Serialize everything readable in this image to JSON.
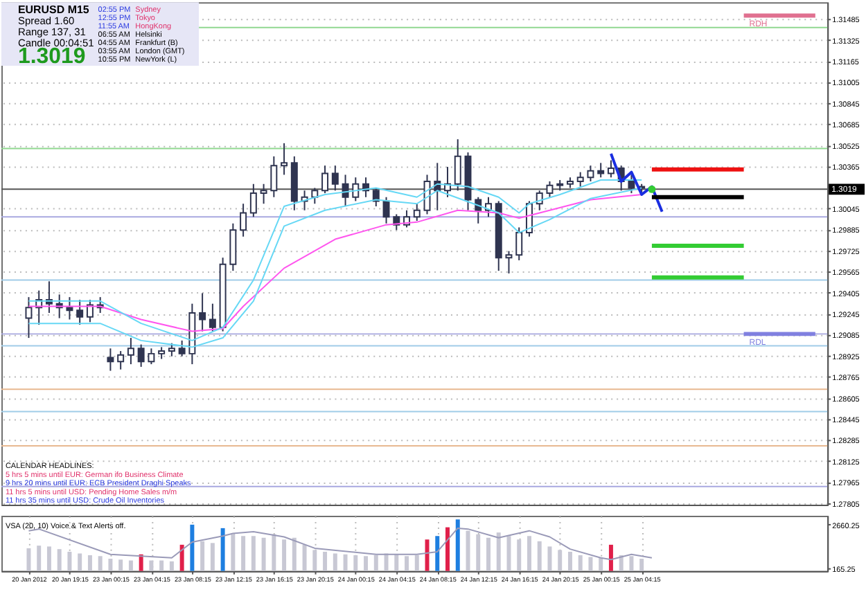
{
  "chart_data": [
    {
      "type": "candlestick",
      "color": "#2f3450",
      "categories": [
        null,
        null,
        null,
        null,
        null,
        null,
        null,
        null,
        null,
        null,
        null,
        null,
        null,
        null,
        null,
        null,
        null,
        null,
        null,
        null,
        null,
        null,
        null,
        null,
        null,
        null,
        null,
        null,
        null,
        null,
        null,
        null,
        null,
        null,
        null,
        null,
        null,
        null,
        null,
        null,
        null,
        null,
        null,
        null,
        null,
        null,
        null,
        null,
        null,
        null,
        null,
        null,
        null,
        null,
        null,
        null,
        null,
        null,
        null,
        null,
        null,
        null,
        null,
        null,
        null,
        null,
        null,
        null,
        null,
        null,
        null,
        null,
        null,
        null,
        null,
        null,
        null,
        null
      ],
      "ohlc": [
        [
          1.2921,
          1.2937,
          1.2906,
          1.2929
        ],
        [
          1.2929,
          1.2942,
          1.2916,
          1.2935
        ],
        [
          1.2935,
          1.2949,
          1.2925,
          1.2932
        ],
        [
          1.2932,
          1.2939,
          1.2921,
          1.2929
        ],
        [
          1.2929,
          1.2937,
          1.292,
          1.2927
        ],
        [
          1.2927,
          1.2935,
          1.2916,
          1.2922
        ],
        [
          1.2922,
          1.2935,
          1.2918,
          1.2931
        ],
        [
          1.2931,
          1.2937,
          1.2925,
          1.2929
        ],
        [
          1.2891,
          1.2898,
          1.2881,
          1.2888
        ],
        [
          1.2888,
          1.2896,
          1.2882,
          1.2893
        ],
        [
          1.2893,
          1.2906,
          1.2886,
          1.2898
        ],
        [
          1.2898,
          1.2901,
          1.2884,
          1.2888
        ],
        [
          1.2888,
          1.2898,
          1.2886,
          1.2894
        ],
        [
          1.2894,
          1.2899,
          1.289,
          1.2896
        ],
        [
          1.2896,
          1.2902,
          1.2892,
          1.2898
        ],
        [
          1.2898,
          1.2904,
          1.2892,
          1.2894
        ],
        [
          1.2894,
          1.2932,
          1.2886,
          1.2925
        ],
        [
          1.2925,
          1.294,
          1.2911,
          1.292
        ],
        [
          1.292,
          1.2932,
          1.2911,
          1.2914
        ],
        [
          1.2914,
          1.2967,
          1.2911,
          1.2962
        ],
        [
          1.2962,
          1.2993,
          1.2957,
          1.2988
        ],
        [
          1.2988,
          1.3008,
          1.2983,
          1.3001
        ],
        [
          1.3001,
          1.3023,
          1.2998,
          1.3016
        ],
        [
          1.3016,
          1.3023,
          1.3008,
          1.3018
        ],
        [
          1.3018,
          1.3044,
          1.3013,
          1.3037
        ],
        [
          1.3037,
          1.3054,
          1.303,
          1.3039
        ],
        [
          1.3039,
          1.3044,
          1.3003,
          1.301
        ],
        [
          1.301,
          1.3018,
          1.3003,
          1.3013
        ],
        [
          1.3013,
          1.302,
          1.3008,
          1.3018
        ],
        [
          1.3018,
          1.3037,
          1.3016,
          1.3031
        ],
        [
          1.3031,
          1.3037,
          1.3018,
          1.3023
        ],
        [
          1.3023,
          1.303,
          1.3006,
          1.3013
        ],
        [
          1.3013,
          1.3028,
          1.301,
          1.3023
        ],
        [
          1.3023,
          1.3028,
          1.3013,
          1.3018
        ],
        [
          1.3018,
          1.302,
          1.3006,
          1.301
        ],
        [
          1.301,
          1.3013,
          1.2993,
          1.2998
        ],
        [
          1.2998,
          1.3,
          1.2988,
          1.2992
        ],
        [
          1.2992,
          1.3003,
          1.299,
          1.2998
        ],
        [
          1.2998,
          1.3008,
          1.2995,
          1.3003
        ],
        [
          1.3003,
          1.303,
          1.3,
          1.3025
        ],
        [
          1.3025,
          1.3039,
          1.3003,
          1.3018
        ],
        [
          1.3018,
          1.3036,
          1.3013,
          1.3023
        ],
        [
          1.3023,
          1.3057,
          1.3018,
          1.3044
        ],
        [
          1.3044,
          1.3047,
          1.3003,
          1.3011
        ],
        [
          1.3011,
          1.3013,
          1.2993,
          1.3003
        ],
        [
          1.3003,
          1.3013,
          1.2998,
          1.3008
        ],
        [
          1.3008,
          1.301,
          1.2957,
          1.2967
        ],
        [
          1.2967,
          1.2972,
          1.2955,
          1.2969
        ],
        [
          1.2969,
          1.299,
          1.2965,
          1.2986
        ],
        [
          1.2986,
          1.301,
          1.2983,
          1.3008
        ],
        [
          1.3008,
          1.3018,
          1.3003,
          1.3016
        ],
        [
          1.3016,
          1.3025,
          1.3013,
          1.3022
        ],
        [
          1.3022,
          1.3026,
          1.3018,
          1.3023
        ],
        [
          1.3023,
          1.3028,
          1.302,
          1.3025
        ],
        [
          1.3025,
          1.3032,
          1.3021,
          1.3028
        ],
        [
          1.3028,
          1.3037,
          1.3025,
          1.3033
        ],
        [
          1.3033,
          1.3039,
          1.3028,
          1.3031
        ],
        [
          1.3031,
          1.3041,
          1.3028,
          1.3035
        ],
        [
          1.3035,
          1.3037,
          1.3018,
          1.3025
        ],
        [
          1.3025,
          1.303,
          1.3016,
          1.302
        ],
        [
          1.302,
          1.3023,
          1.3016,
          1.3021
        ],
        null,
        null,
        null,
        null,
        null,
        null,
        null,
        null,
        null,
        null,
        null,
        null,
        null,
        null,
        null,
        null,
        null
      ],
      "series": [
        {
          "type": "line",
          "color": "#ff55ee",
          "values": [
            1.293,
            null,
            null,
            null,
            null,
            null,
            null,
            1.293,
            null,
            null,
            null,
            1.292,
            null,
            null,
            null,
            null,
            1.2911,
            null,
            null,
            1.2913,
            null,
            1.293,
            null,
            null,
            null,
            1.2959,
            null,
            null,
            null,
            null,
            1.2981,
            null,
            null,
            null,
            null,
            1.2992,
            null,
            null,
            1.2994,
            null,
            null,
            null,
            1.3003,
            null,
            null,
            null,
            1.3001,
            null,
            1.2997,
            null,
            null,
            1.3003,
            null,
            null,
            null,
            1.3011,
            null,
            null,
            null,
            null,
            1.3015,
            null,
            null,
            null,
            null,
            null,
            null,
            null,
            null,
            null,
            null,
            null,
            null,
            null,
            null,
            null,
            null,
            null
          ]
        },
        {
          "type": "line",
          "color": "#66d8f5",
          "values": [
            1.2934,
            null,
            null,
            null,
            null,
            null,
            null,
            1.2934,
            null,
            null,
            null,
            1.2917,
            null,
            null,
            null,
            null,
            1.2904,
            null,
            null,
            1.2914,
            null,
            null,
            1.295,
            null,
            null,
            1.3006,
            null,
            null,
            null,
            1.3015,
            null,
            null,
            null,
            null,
            1.302,
            null,
            null,
            null,
            1.3013,
            null,
            1.3023,
            null,
            null,
            1.3021,
            null,
            null,
            1.3013,
            null,
            1.3001,
            1.3008,
            null,
            null,
            1.3015,
            null,
            null,
            null,
            1.3026,
            null,
            null,
            null,
            1.3026,
            null,
            null,
            null,
            null,
            null,
            null,
            null,
            null,
            null,
            null,
            null,
            null,
            null,
            null,
            null,
            null,
            null
          ]
        },
        {
          "type": "line",
          "color": "#66d8f5",
          "values": [
            1.2917,
            null,
            null,
            null,
            null,
            null,
            null,
            1.2917,
            null,
            null,
            null,
            1.2904,
            null,
            null,
            null,
            null,
            1.2899,
            null,
            null,
            1.2906,
            null,
            null,
            1.2934,
            null,
            null,
            1.2991,
            null,
            null,
            null,
            1.3003,
            null,
            null,
            null,
            null,
            1.3011,
            null,
            null,
            null,
            1.3008,
            null,
            1.3018,
            null,
            null,
            null,
            null,
            null,
            1.3001,
            null,
            1.2986,
            null,
            null,
            1.2996,
            null,
            null,
            null,
            1.3012,
            null,
            null,
            null,
            null,
            1.302,
            null,
            null,
            null,
            null,
            null,
            null,
            null,
            null,
            null,
            null,
            null,
            null,
            null,
            null,
            null,
            null,
            null
          ]
        },
        {
          "type": "line",
          "color": "#1a2ee0",
          "values": [
            null,
            null,
            null,
            null,
            null,
            null,
            null,
            null,
            null,
            null,
            null,
            null,
            null,
            null,
            null,
            null,
            null,
            null,
            null,
            null,
            null,
            null,
            null,
            null,
            null,
            null,
            null,
            null,
            null,
            null,
            null,
            null,
            null,
            null,
            null,
            null,
            null,
            null,
            null,
            null,
            null,
            null,
            null,
            null,
            null,
            null,
            null,
            null,
            null,
            null,
            null,
            null,
            null,
            null,
            null,
            null,
            null,
            1.3046,
            1.3025,
            1.3032,
            1.3015,
            1.3021,
            1.3002,
            null,
            null,
            null,
            null,
            null,
            null,
            null,
            null,
            null,
            null,
            null,
            null,
            null,
            null,
            null
          ]
        },
        {
          "type": "scatter",
          "color": "#33cc33",
          "values": [
            null,
            null,
            null,
            null,
            null,
            null,
            null,
            null,
            null,
            null,
            null,
            null,
            null,
            null,
            null,
            null,
            null,
            null,
            null,
            null,
            null,
            null,
            null,
            null,
            null,
            null,
            null,
            null,
            null,
            null,
            null,
            null,
            null,
            null,
            null,
            null,
            null,
            null,
            null,
            null,
            null,
            null,
            null,
            null,
            null,
            null,
            null,
            null,
            null,
            null,
            null,
            null,
            null,
            null,
            null,
            null,
            null,
            null,
            null,
            null,
            null,
            1.3019,
            null,
            null,
            null,
            null,
            null,
            null,
            null,
            null,
            null,
            null,
            null,
            null,
            null,
            null,
            null,
            null
          ]
        },
        {
          "type": "line",
          "color": "#ee1111",
          "values": [
            null,
            null,
            null,
            null,
            null,
            null,
            null,
            null,
            null,
            null,
            null,
            null,
            null,
            null,
            null,
            null,
            null,
            null,
            null,
            null,
            null,
            null,
            null,
            null,
            null,
            null,
            null,
            null,
            null,
            null,
            null,
            null,
            null,
            null,
            null,
            null,
            null,
            null,
            null,
            null,
            null,
            null,
            null,
            null,
            null,
            null,
            null,
            null,
            null,
            null,
            null,
            null,
            null,
            null,
            null,
            null,
            null,
            null,
            null,
            null,
            null,
            1.3034,
            null,
            null,
            null,
            null,
            null,
            null,
            null,
            null,
            1.3034,
            null,
            null,
            null,
            null,
            null,
            null,
            null
          ]
        },
        {
          "type": "line",
          "color": "#000000",
          "values": [
            null,
            null,
            null,
            null,
            null,
            null,
            null,
            null,
            null,
            null,
            null,
            null,
            null,
            null,
            null,
            null,
            null,
            null,
            null,
            null,
            null,
            null,
            null,
            null,
            null,
            null,
            null,
            null,
            null,
            null,
            null,
            null,
            null,
            null,
            null,
            null,
            null,
            null,
            null,
            null,
            null,
            null,
            null,
            null,
            null,
            null,
            null,
            null,
            null,
            null,
            null,
            null,
            null,
            null,
            null,
            null,
            null,
            null,
            null,
            null,
            null,
            1.3013,
            null,
            null,
            null,
            null,
            null,
            null,
            null,
            null,
            1.3013,
            null,
            null,
            null,
            null,
            null,
            null,
            null
          ]
        },
        {
          "type": "line",
          "color": "#33cc33",
          "values": [
            null,
            null,
            null,
            null,
            null,
            null,
            null,
            null,
            null,
            null,
            null,
            null,
            null,
            null,
            null,
            null,
            null,
            null,
            null,
            null,
            null,
            null,
            null,
            null,
            null,
            null,
            null,
            null,
            null,
            null,
            null,
            null,
            null,
            null,
            null,
            null,
            null,
            null,
            null,
            null,
            null,
            null,
            null,
            null,
            null,
            null,
            null,
            null,
            null,
            null,
            null,
            null,
            null,
            null,
            null,
            null,
            null,
            null,
            null,
            null,
            null,
            1.2976,
            null,
            null,
            null,
            null,
            null,
            null,
            null,
            null,
            1.2976,
            null,
            null,
            null,
            null,
            null,
            null,
            null
          ]
        },
        {
          "type": "line",
          "color": "#33cc33",
          "values": [
            null,
            null,
            null,
            null,
            null,
            null,
            null,
            null,
            null,
            null,
            null,
            null,
            null,
            null,
            null,
            null,
            null,
            null,
            null,
            null,
            null,
            null,
            null,
            null,
            null,
            null,
            null,
            null,
            null,
            null,
            null,
            null,
            null,
            null,
            null,
            null,
            null,
            null,
            null,
            null,
            null,
            null,
            null,
            null,
            null,
            null,
            null,
            null,
            null,
            null,
            null,
            null,
            null,
            null,
            null,
            null,
            null,
            null,
            null,
            null,
            null,
            1.2952,
            null,
            null,
            null,
            null,
            null,
            null,
            null,
            null,
            1.2952,
            null,
            null,
            null,
            null,
            null,
            null,
            null
          ]
        },
        {
          "type": "line",
          "name": "RDH",
          "color": "#e07090",
          "values": [
            null,
            null,
            null,
            null,
            null,
            null,
            null,
            null,
            null,
            null,
            null,
            null,
            null,
            null,
            null,
            null,
            null,
            null,
            null,
            null,
            null,
            null,
            null,
            null,
            null,
            null,
            null,
            null,
            null,
            null,
            null,
            null,
            null,
            null,
            null,
            null,
            null,
            null,
            null,
            null,
            null,
            null,
            null,
            null,
            null,
            null,
            null,
            null,
            null,
            null,
            null,
            null,
            null,
            null,
            null,
            null,
            null,
            null,
            null,
            null,
            null,
            null,
            null,
            null,
            null,
            null,
            null,
            null,
            null,
            null,
            1.3151,
            null,
            null,
            null,
            null,
            null,
            null,
            1.3151
          ]
        },
        {
          "type": "line",
          "name": "RDL",
          "color": "#8080e0",
          "values": [
            null,
            null,
            null,
            null,
            null,
            null,
            null,
            null,
            null,
            null,
            null,
            null,
            null,
            null,
            null,
            null,
            null,
            null,
            null,
            null,
            null,
            null,
            null,
            null,
            null,
            null,
            null,
            null,
            null,
            null,
            null,
            null,
            null,
            null,
            null,
            null,
            null,
            null,
            null,
            null,
            null,
            null,
            null,
            null,
            null,
            null,
            null,
            null,
            null,
            null,
            null,
            null,
            null,
            null,
            null,
            null,
            null,
            null,
            null,
            null,
            null,
            null,
            null,
            null,
            null,
            null,
            null,
            null,
            null,
            null,
            1.2909,
            null,
            null,
            null,
            null,
            null,
            null,
            1.2909
          ]
        }
      ],
      "ylim": [
        1.27792,
        1.31611
      ],
      "yticks": [
        1.27805,
        1.27965,
        1.28125,
        1.28285,
        1.28445,
        1.28605,
        1.28765,
        1.28925,
        1.29085,
        1.29245,
        1.29405,
        1.29565,
        1.29725,
        1.29885,
        1.30045,
        1.30365,
        1.30525,
        1.30685,
        1.30845,
        1.31005,
        1.31165,
        1.31325,
        1.31485
      ],
      "grid": "y",
      "tick_labels": "y",
      "ref_lines": [
        {
          "axis": "y",
          "value": 1.3019,
          "label": "1.3019",
          "color": "#555555"
        },
        {
          "axis": "y",
          "value": 1.3142,
          "color": "#90d890"
        },
        {
          "axis": "y",
          "value": 1.305,
          "color": "#90d890"
        },
        {
          "axis": "y",
          "value": 1.2998,
          "color": "#a8a8e0"
        },
        {
          "axis": "y",
          "value": 1.295,
          "color": "#a0cce8"
        },
        {
          "axis": "y",
          "value": 1.2909,
          "color": "#a8a8e0"
        },
        {
          "axis": "y",
          "value": 1.29,
          "color": "#a0cce8"
        },
        {
          "axis": "y",
          "value": 1.2867,
          "color": "#e8b890"
        },
        {
          "axis": "y",
          "value": 1.285,
          "color": "#a0cce8"
        },
        {
          "axis": "y",
          "value": 1.2824,
          "color": "#e8b890"
        },
        {
          "axis": "y",
          "value": 1.2793,
          "color": "#a8a8e0"
        }
      ],
      "annotations": [
        "EURUSD   M15",
        "Spread  1.60",
        "Range   137, 31",
        "Candle  00:04:51",
        "1.3019",
        "02:55 PM",
        "12:55 PM",
        "11:55 AM",
        "06:55 AM",
        "04:55 AM",
        "03:55 AM",
        "10:55 PM",
        "Sydney",
        "Tokyo",
        "HongKong",
        "Helsinki",
        "Frankfurt (B)",
        "London (GMT)",
        "NewYork (L)",
        "CALENDAR HEADLINES:",
        "5 hrs 5 mins until EUR: German ifo Business Climate",
        "9 hrs 20 mins until EUR: ECB President Draghi Speaks",
        "11 hrs 5 mins until USD: Pending Home Sales m/m",
        "11 hrs 35 mins until USD: Crude Oil Inventories"
      ]
    },
    {
      "type": "bar",
      "categories": [
        "20 Jan 2012",
        null,
        null,
        null,
        "20 Jan 19:15",
        null,
        null,
        null,
        "23 Jan 00:15",
        null,
        null,
        null,
        "23 Jan 04:15",
        null,
        null,
        null,
        "23 Jan 08:15",
        null,
        null,
        null,
        "23 Jan 12:15",
        null,
        null,
        null,
        "23 Jan 16:15",
        null,
        null,
        null,
        "23 Jan 20:15",
        null,
        null,
        null,
        "24 Jan 00:15",
        null,
        null,
        null,
        "24 Jan 04:15",
        null,
        null,
        null,
        "24 Jan 08:15",
        null,
        null,
        null,
        "24 Jan 12:15",
        null,
        null,
        null,
        "24 Jan 16:15",
        null,
        null,
        null,
        "24 Jan 20:15",
        null,
        null,
        null,
        "25 Jan 00:15",
        null,
        null,
        null,
        "25 Jan 04:15",
        null,
        null,
        null,
        null,
        null,
        null,
        null,
        null,
        null,
        null,
        null,
        null,
        null,
        null,
        null,
        null,
        null
      ],
      "series": [
        {
          "type": "bar",
          "values": [
            1300,
            1450,
            1400,
            1250,
            1100,
            1000,
            900,
            850,
            700,
            650,
            600,
            950,
            600,
            600,
            550,
            1500,
            2650,
            1700,
            1600,
            2450,
            2100,
            2000,
            2000,
            1900,
            2100,
            1800,
            1900,
            1500,
            1200,
            1100,
            1000,
            950,
            900,
            850,
            900,
            1000,
            950,
            850,
            900,
            1800,
            2000,
            2500,
            2950,
            2300,
            2100,
            1900,
            2200,
            2000,
            1800,
            2000,
            1700,
            1400,
            1200,
            1100,
            900,
            800,
            750,
            1500,
            900,
            850,
            700,
            null,
            null,
            null,
            null,
            null,
            null,
            null,
            null,
            null,
            null,
            null,
            null,
            null,
            null,
            null,
            null,
            null
          ],
          "colors": [
            "#c8c8d4",
            "#c8c8d4",
            "#c8c8d4",
            "#c8c8d4",
            "#c8c8d4",
            "#c8c8d4",
            "#c8c8d4",
            "#c8c8d4",
            "#c8c8d4",
            "#c8c8d4",
            "#c8c8d4",
            "#e0204a",
            "#c8c8d4",
            "#c8c8d4",
            "#c8c8d4",
            "#e0204a",
            "#1e7fe0",
            "#c8c8d4",
            "#c8c8d4",
            "#1e7fe0",
            "#c8c8d4",
            "#c8c8d4",
            "#c8c8d4",
            "#c8c8d4",
            "#c8c8d4",
            "#c8c8d4",
            "#c8c8d4",
            "#c8c8d4",
            "#c8c8d4",
            "#c8c8d4",
            "#c8c8d4",
            "#c8c8d4",
            "#c8c8d4",
            "#c8c8d4",
            "#c8c8d4",
            "#c8c8d4",
            "#c8c8d4",
            "#c8c8d4",
            "#c8c8d4",
            "#e0204a",
            "#1e7fe0",
            "#e0204a",
            "#1e7fe0",
            "#c8c8d4",
            "#c8c8d4",
            "#c8c8d4",
            "#c8c8d4",
            "#c8c8d4",
            "#c8c8d4",
            "#c8c8d4",
            "#c8c8d4",
            "#c8c8d4",
            "#c8c8d4",
            "#c8c8d4",
            "#c8c8d4",
            "#c8c8d4",
            "#c8c8d4",
            "#e0204a",
            "#c8c8d4",
            "#c8c8d4",
            "#c8c8d4",
            null,
            null,
            null,
            null,
            null,
            null,
            null,
            null,
            null,
            null,
            null,
            null,
            null,
            null,
            null,
            null,
            null
          ]
        },
        {
          "type": "line",
          "color": "#9a9ab8",
          "values": [
            2300,
            2400,
            null,
            null,
            null,
            null,
            null,
            null,
            950,
            null,
            null,
            null,
            null,
            null,
            750,
            null,
            1650,
            null,
            null,
            2000,
            2150,
            null,
            2250,
            null,
            null,
            1950,
            null,
            null,
            1300,
            null,
            null,
            null,
            null,
            null,
            950,
            null,
            null,
            null,
            950,
            null,
            1100,
            null,
            2450,
            2400,
            null,
            null,
            1900,
            null,
            null,
            2300,
            null,
            1950,
            null,
            1250,
            null,
            null,
            750,
            650,
            null,
            950,
            null,
            750,
            null,
            null,
            null,
            null,
            null,
            null,
            null,
            null,
            null,
            null,
            null,
            null,
            null,
            null,
            null,
            null
          ]
        }
      ],
      "ylim": [
        0,
        3160
      ],
      "yticks": [
        165.25,
        2660.25
      ],
      "grid": "x",
      "annotations": [
        "VSA (20, 10)   Voice & Text Alerts off."
      ]
    }
  ]
}
